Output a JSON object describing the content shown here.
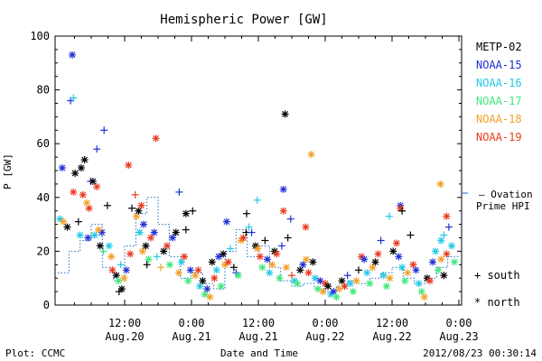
{
  "footer": {
    "plot_credit": "Plot: CCMC",
    "timestamp": "2012/08/23 00:30:14"
  },
  "chart_data": {
    "type": "scatter",
    "title": "Hemispheric Power [GW]",
    "xlabel": "Date and Time",
    "ylabel": "P [GW]",
    "ylim": [
      0,
      100
    ],
    "y_ticks": [
      0,
      20,
      40,
      60,
      80,
      100
    ],
    "x_ticks": [
      {
        "time": "12:00",
        "date": "Aug.20",
        "hours": 12
      },
      {
        "time": "0:00",
        "date": "Aug.21",
        "hours": 24
      },
      {
        "time": "12:00",
        "date": "Aug.21",
        "hours": 36
      },
      {
        "time": "0:00",
        "date": "Aug.22",
        "hours": 48
      },
      {
        "time": "12:00",
        "date": "Aug.22",
        "hours": 60
      },
      {
        "time": "0:00",
        "date": "Aug.23",
        "hours": 72
      }
    ],
    "xlim_hours": [
      0,
      72
    ],
    "x_units_note": "",
    "model_label_1": "— Ovation",
    "model_label_2": "Prime HPI",
    "model_color": "#1a6fc4",
    "symbol_legend": [
      {
        "symbol": "+",
        "label": "south"
      },
      {
        "symbol": "*",
        "label": "north"
      }
    ],
    "series": [
      {
        "name": "METP-02",
        "color": "#000000"
      },
      {
        "name": "NOAA-15",
        "color": "#1f2fd6"
      },
      {
        "name": "NOAA-16",
        "color": "#22c8e6"
      },
      {
        "name": "NOAA-17",
        "color": "#3ee87a"
      },
      {
        "name": "NOAA-18",
        "color": "#f2a028"
      },
      {
        "name": "NOAA-19",
        "color": "#e83a20"
      }
    ],
    "points": [
      {
        "s": 1,
        "m": "*",
        "x": 2.6,
        "y": 93
      },
      {
        "s": 1,
        "m": "+",
        "x": 2.3,
        "y": 76
      },
      {
        "s": 2,
        "m": "+",
        "x": 2.8,
        "y": 77
      },
      {
        "s": 1,
        "m": "+",
        "x": 8.3,
        "y": 65
      },
      {
        "s": 0,
        "m": "*",
        "x": 4.8,
        "y": 54
      },
      {
        "s": 0,
        "m": "*",
        "x": 4.2,
        "y": 51
      },
      {
        "s": 1,
        "m": "*",
        "x": 0.8,
        "y": 51
      },
      {
        "s": 0,
        "m": "*",
        "x": 3.1,
        "y": 49
      },
      {
        "s": 1,
        "m": "+",
        "x": 5.9,
        "y": 46
      },
      {
        "s": 1,
        "m": "+",
        "x": 7.0,
        "y": 58
      },
      {
        "s": 5,
        "m": "*",
        "x": 2.8,
        "y": 42
      },
      {
        "s": 5,
        "m": "*",
        "x": 4.5,
        "y": 41
      },
      {
        "s": 5,
        "m": "*",
        "x": 7.0,
        "y": 44
      },
      {
        "s": 0,
        "m": "*",
        "x": 6.3,
        "y": 46
      },
      {
        "s": 5,
        "m": "*",
        "x": 12.7,
        "y": 52
      },
      {
        "s": 5,
        "m": "*",
        "x": 17.6,
        "y": 62
      },
      {
        "s": 0,
        "m": "*",
        "x": 40.8,
        "y": 71
      },
      {
        "s": 4,
        "m": "*",
        "x": 45.5,
        "y": 56
      },
      {
        "s": 4,
        "m": "*",
        "x": 68.7,
        "y": 45
      },
      {
        "s": 1,
        "m": "*",
        "x": 40.5,
        "y": 43
      },
      {
        "s": 5,
        "m": "*",
        "x": 40.5,
        "y": 35
      },
      {
        "s": 2,
        "m": "+",
        "x": 35.8,
        "y": 39
      },
      {
        "s": 1,
        "m": "+",
        "x": 21.8,
        "y": 42
      },
      {
        "s": 1,
        "m": "*",
        "x": 30.3,
        "y": 31
      },
      {
        "s": 0,
        "m": "+",
        "x": 33.9,
        "y": 34
      },
      {
        "s": 0,
        "m": "*",
        "x": 23.0,
        "y": 34
      },
      {
        "s": 1,
        "m": "+",
        "x": 41.8,
        "y": 32
      },
      {
        "s": 5,
        "m": "*",
        "x": 44.5,
        "y": 29
      },
      {
        "s": 2,
        "m": "+",
        "x": 59.5,
        "y": 33
      },
      {
        "s": 1,
        "m": "*",
        "x": 61.5,
        "y": 37
      },
      {
        "s": 5,
        "m": "*",
        "x": 61.5,
        "y": 36
      },
      {
        "s": 0,
        "m": "+",
        "x": 61.8,
        "y": 35
      },
      {
        "s": 5,
        "m": "*",
        "x": 69.8,
        "y": 33
      },
      {
        "s": 2,
        "m": "+",
        "x": 69.3,
        "y": 26
      },
      {
        "s": 2,
        "m": "*",
        "x": 68.8,
        "y": 24
      },
      {
        "s": 2,
        "m": "*",
        "x": 0.4,
        "y": 32
      },
      {
        "s": 4,
        "m": "*",
        "x": 1.0,
        "y": 31
      },
      {
        "s": 0,
        "m": "*",
        "x": 1.7,
        "y": 29
      },
      {
        "s": 0,
        "m": "+",
        "x": 3.7,
        "y": 31
      },
      {
        "s": 2,
        "m": "*",
        "x": 4.0,
        "y": 26
      },
      {
        "s": 1,
        "m": "*",
        "x": 5.4,
        "y": 25
      },
      {
        "s": 5,
        "m": "*",
        "x": 5.6,
        "y": 36
      },
      {
        "s": 4,
        "m": "*",
        "x": 5.2,
        "y": 38
      },
      {
        "s": 2,
        "m": "*",
        "x": 6.6,
        "y": 26
      },
      {
        "s": 0,
        "m": "+",
        "x": 8.9,
        "y": 37
      },
      {
        "s": 0,
        "m": "*",
        "x": 7.6,
        "y": 22
      },
      {
        "s": 1,
        "m": "*",
        "x": 7.9,
        "y": 27
      },
      {
        "s": 4,
        "m": "*",
        "x": 7.3,
        "y": 28
      },
      {
        "s": 3,
        "m": "+",
        "x": 8.2,
        "y": 20
      },
      {
        "s": 2,
        "m": "*",
        "x": 9.2,
        "y": 22
      },
      {
        "s": 4,
        "m": "*",
        "x": 9.6,
        "y": 18
      },
      {
        "s": 0,
        "m": "*",
        "x": 10.5,
        "y": 11
      },
      {
        "s": 5,
        "m": "*",
        "x": 9.8,
        "y": 13
      },
      {
        "s": 3,
        "m": "*",
        "x": 10.9,
        "y": 9
      },
      {
        "s": 0,
        "m": "*",
        "x": 11.5,
        "y": 6
      },
      {
        "s": 0,
        "m": "+",
        "x": 11.0,
        "y": 5
      },
      {
        "s": 4,
        "m": "*",
        "x": 11.9,
        "y": 10
      },
      {
        "s": 2,
        "m": "+",
        "x": 11.3,
        "y": 15
      },
      {
        "s": 1,
        "m": "*",
        "x": 12.3,
        "y": 13
      },
      {
        "s": 5,
        "m": "*",
        "x": 13.0,
        "y": 19
      },
      {
        "s": 5,
        "m": "+",
        "x": 13.9,
        "y": 41
      },
      {
        "s": 0,
        "m": "+",
        "x": 13.3,
        "y": 36
      },
      {
        "s": 4,
        "m": "*",
        "x": 14.1,
        "y": 33
      },
      {
        "s": 0,
        "m": "*",
        "x": 14.5,
        "y": 35
      },
      {
        "s": 5,
        "m": "*",
        "x": 15.0,
        "y": 37
      },
      {
        "s": 2,
        "m": "*",
        "x": 14.7,
        "y": 27
      },
      {
        "s": 1,
        "m": "*",
        "x": 15.4,
        "y": 30
      },
      {
        "s": 0,
        "m": "*",
        "x": 15.8,
        "y": 22
      },
      {
        "s": 4,
        "m": "*",
        "x": 15.2,
        "y": 20
      },
      {
        "s": 3,
        "m": "*",
        "x": 16.3,
        "y": 17
      },
      {
        "s": 0,
        "m": "+",
        "x": 16.0,
        "y": 15
      },
      {
        "s": 5,
        "m": "*",
        "x": 16.7,
        "y": 25
      },
      {
        "s": 1,
        "m": "*",
        "x": 17.3,
        "y": 27
      },
      {
        "s": 2,
        "m": "+",
        "x": 17.8,
        "y": 18
      },
      {
        "s": 4,
        "m": "+",
        "x": 18.5,
        "y": 14
      },
      {
        "s": 0,
        "m": "*",
        "x": 19.0,
        "y": 20
      },
      {
        "s": 5,
        "m": "*",
        "x": 19.6,
        "y": 22
      },
      {
        "s": 3,
        "m": "*",
        "x": 20.1,
        "y": 15
      },
      {
        "s": 1,
        "m": "*",
        "x": 20.6,
        "y": 25
      },
      {
        "s": 0,
        "m": "*",
        "x": 21.2,
        "y": 27
      },
      {
        "s": 4,
        "m": "*",
        "x": 21.7,
        "y": 12
      },
      {
        "s": 2,
        "m": "*",
        "x": 22.2,
        "y": 16
      },
      {
        "s": 5,
        "m": "*",
        "x": 22.7,
        "y": 18
      },
      {
        "s": 0,
        "m": "+",
        "x": 23.0,
        "y": 28
      },
      {
        "s": 3,
        "m": "*",
        "x": 23.4,
        "y": 9
      },
      {
        "s": 1,
        "m": "*",
        "x": 23.8,
        "y": 13
      },
      {
        "s": 0,
        "m": "+",
        "x": 24.2,
        "y": 35
      },
      {
        "s": 4,
        "m": "*",
        "x": 24.7,
        "y": 11
      },
      {
        "s": 5,
        "m": "*",
        "x": 25.2,
        "y": 13
      },
      {
        "s": 2,
        "m": "*",
        "x": 25.5,
        "y": 7
      },
      {
        "s": 0,
        "m": "*",
        "x": 26.0,
        "y": 9
      },
      {
        "s": 3,
        "m": "*",
        "x": 26.4,
        "y": 4
      },
      {
        "s": 1,
        "m": "*",
        "x": 26.8,
        "y": 6
      },
      {
        "s": 4,
        "m": "*",
        "x": 27.3,
        "y": 3
      },
      {
        "s": 0,
        "m": "*",
        "x": 27.7,
        "y": 16
      },
      {
        "s": 5,
        "m": "*",
        "x": 28.1,
        "y": 10
      },
      {
        "s": 2,
        "m": "*",
        "x": 28.5,
        "y": 13
      },
      {
        "s": 1,
        "m": "*",
        "x": 28.9,
        "y": 18
      },
      {
        "s": 3,
        "m": "*",
        "x": 29.3,
        "y": 7
      },
      {
        "s": 0,
        "m": "*",
        "x": 29.7,
        "y": 19
      },
      {
        "s": 4,
        "m": "*",
        "x": 30.0,
        "y": 15
      },
      {
        "s": 5,
        "m": "*",
        "x": 30.6,
        "y": 16
      },
      {
        "s": 2,
        "m": "+",
        "x": 31.0,
        "y": 21
      },
      {
        "s": 0,
        "m": "+",
        "x": 31.6,
        "y": 14
      },
      {
        "s": 1,
        "m": "+",
        "x": 32.0,
        "y": 12
      },
      {
        "s": 3,
        "m": "*",
        "x": 32.4,
        "y": 11
      },
      {
        "s": 4,
        "m": "*",
        "x": 32.9,
        "y": 24
      },
      {
        "s": 5,
        "m": "*",
        "x": 33.3,
        "y": 25
      },
      {
        "s": 0,
        "m": "+",
        "x": 33.8,
        "y": 27
      },
      {
        "s": 2,
        "m": "+",
        "x": 34.3,
        "y": 29
      },
      {
        "s": 1,
        "m": "+",
        "x": 34.8,
        "y": 27
      },
      {
        "s": 0,
        "m": "*",
        "x": 35.5,
        "y": 22
      },
      {
        "s": 4,
        "m": "*",
        "x": 35.9,
        "y": 21
      },
      {
        "s": 5,
        "m": "*",
        "x": 36.3,
        "y": 18
      },
      {
        "s": 3,
        "m": "*",
        "x": 36.7,
        "y": 14
      },
      {
        "s": 0,
        "m": "+",
        "x": 37.2,
        "y": 24
      },
      {
        "s": 1,
        "m": "*",
        "x": 37.6,
        "y": 17
      },
      {
        "s": 2,
        "m": "*",
        "x": 38.0,
        "y": 12
      },
      {
        "s": 4,
        "m": "*",
        "x": 38.5,
        "y": 15
      },
      {
        "s": 0,
        "m": "*",
        "x": 38.9,
        "y": 20
      },
      {
        "s": 5,
        "m": "*",
        "x": 39.3,
        "y": 19
      },
      {
        "s": 3,
        "m": "*",
        "x": 39.8,
        "y": 10
      },
      {
        "s": 1,
        "m": "+",
        "x": 40.2,
        "y": 22
      },
      {
        "s": 0,
        "m": "+",
        "x": 41.3,
        "y": 25
      },
      {
        "s": 4,
        "m": "*",
        "x": 41.0,
        "y": 14
      },
      {
        "s": 5,
        "m": "+",
        "x": 42.0,
        "y": 11
      },
      {
        "s": 2,
        "m": "*",
        "x": 42.5,
        "y": 9
      },
      {
        "s": 3,
        "m": "*",
        "x": 43.0,
        "y": 8
      },
      {
        "s": 0,
        "m": "*",
        "x": 43.5,
        "y": 13
      },
      {
        "s": 1,
        "m": "*",
        "x": 44.0,
        "y": 15
      },
      {
        "s": 4,
        "m": "*",
        "x": 44.6,
        "y": 17
      },
      {
        "s": 5,
        "m": "*",
        "x": 45.0,
        "y": 12
      },
      {
        "s": 0,
        "m": "*",
        "x": 45.8,
        "y": 16
      },
      {
        "s": 2,
        "m": "*",
        "x": 46.2,
        "y": 10
      },
      {
        "s": 3,
        "m": "*",
        "x": 46.7,
        "y": 6
      },
      {
        "s": 1,
        "m": "*",
        "x": 47.1,
        "y": 9
      },
      {
        "s": 4,
        "m": "*",
        "x": 47.6,
        "y": 5
      },
      {
        "s": 5,
        "m": "*",
        "x": 48.0,
        "y": 8
      },
      {
        "s": 0,
        "m": "*",
        "x": 48.5,
        "y": 7
      },
      {
        "s": 2,
        "m": "*",
        "x": 49.0,
        "y": 4
      },
      {
        "s": 1,
        "m": "*",
        "x": 49.5,
        "y": 5
      },
      {
        "s": 3,
        "m": "*",
        "x": 50.0,
        "y": 3
      },
      {
        "s": 4,
        "m": "*",
        "x": 50.5,
        "y": 6
      },
      {
        "s": 0,
        "m": "*",
        "x": 51.0,
        "y": 9
      },
      {
        "s": 5,
        "m": "*",
        "x": 51.5,
        "y": 7
      },
      {
        "s": 1,
        "m": "+",
        "x": 52.0,
        "y": 11
      },
      {
        "s": 2,
        "m": "*",
        "x": 52.5,
        "y": 8
      },
      {
        "s": 3,
        "m": "*",
        "x": 53.0,
        "y": 5
      },
      {
        "s": 4,
        "m": "*",
        "x": 53.6,
        "y": 9
      },
      {
        "s": 0,
        "m": "+",
        "x": 54.0,
        "y": 13
      },
      {
        "s": 5,
        "m": "*",
        "x": 54.5,
        "y": 18
      },
      {
        "s": 1,
        "m": "*",
        "x": 55.0,
        "y": 17
      },
      {
        "s": 2,
        "m": "*",
        "x": 55.5,
        "y": 12
      },
      {
        "s": 3,
        "m": "*",
        "x": 56.0,
        "y": 8
      },
      {
        "s": 4,
        "m": "*",
        "x": 56.5,
        "y": 14
      },
      {
        "s": 0,
        "m": "*",
        "x": 57.0,
        "y": 16
      },
      {
        "s": 5,
        "m": "*",
        "x": 57.5,
        "y": 19
      },
      {
        "s": 1,
        "m": "+",
        "x": 58.0,
        "y": 24
      },
      {
        "s": 2,
        "m": "*",
        "x": 58.5,
        "y": 11
      },
      {
        "s": 3,
        "m": "*",
        "x": 59.0,
        "y": 7
      },
      {
        "s": 4,
        "m": "*",
        "x": 59.6,
        "y": 10
      },
      {
        "s": 0,
        "m": "*",
        "x": 60.2,
        "y": 20
      },
      {
        "s": 5,
        "m": "*",
        "x": 60.8,
        "y": 23
      },
      {
        "s": 1,
        "m": "*",
        "x": 61.2,
        "y": 18
      },
      {
        "s": 2,
        "m": "*",
        "x": 61.8,
        "y": 14
      },
      {
        "s": 3,
        "m": "*",
        "x": 62.3,
        "y": 9
      },
      {
        "s": 4,
        "m": "*",
        "x": 62.8,
        "y": 12
      },
      {
        "s": 0,
        "m": "+",
        "x": 63.3,
        "y": 26
      },
      {
        "s": 5,
        "m": "*",
        "x": 63.8,
        "y": 15
      },
      {
        "s": 1,
        "m": "*",
        "x": 64.3,
        "y": 13
      },
      {
        "s": 2,
        "m": "*",
        "x": 64.8,
        "y": 8
      },
      {
        "s": 3,
        "m": "*",
        "x": 65.3,
        "y": 5
      },
      {
        "s": 4,
        "m": "*",
        "x": 65.8,
        "y": 3
      },
      {
        "s": 0,
        "m": "*",
        "x": 66.3,
        "y": 10
      },
      {
        "s": 5,
        "m": "*",
        "x": 66.8,
        "y": 9
      },
      {
        "s": 1,
        "m": "*",
        "x": 67.3,
        "y": 16
      },
      {
        "s": 2,
        "m": "*",
        "x": 67.8,
        "y": 20
      },
      {
        "s": 3,
        "m": "*",
        "x": 68.3,
        "y": 13
      },
      {
        "s": 4,
        "m": "*",
        "x": 68.8,
        "y": 17
      },
      {
        "s": 0,
        "m": "*",
        "x": 69.3,
        "y": 11
      },
      {
        "s": 5,
        "m": "*",
        "x": 69.8,
        "y": 19
      },
      {
        "s": 1,
        "m": "+",
        "x": 70.2,
        "y": 29
      },
      {
        "s": 2,
        "m": "*",
        "x": 70.7,
        "y": 22
      },
      {
        "s": 3,
        "m": "*",
        "x": 71.2,
        "y": 16
      }
    ],
    "hpi_steps": [
      [
        0,
        12
      ],
      [
        2,
        20
      ],
      [
        4,
        24
      ],
      [
        6,
        30
      ],
      [
        8,
        14
      ],
      [
        10,
        9
      ],
      [
        12,
        22
      ],
      [
        14,
        34
      ],
      [
        16,
        40
      ],
      [
        18,
        30
      ],
      [
        20,
        18
      ],
      [
        22,
        10
      ],
      [
        24,
        12
      ],
      [
        26,
        8
      ],
      [
        28,
        6
      ],
      [
        30,
        20
      ],
      [
        32,
        28
      ],
      [
        34,
        18
      ],
      [
        36,
        22
      ],
      [
        38,
        14
      ],
      [
        40,
        9
      ],
      [
        42,
        7
      ],
      [
        44,
        8
      ],
      [
        46,
        6
      ],
      [
        48,
        5
      ],
      [
        50,
        7
      ],
      [
        52,
        9
      ],
      [
        54,
        8
      ],
      [
        56,
        10
      ],
      [
        58,
        12
      ],
      [
        60,
        14
      ],
      [
        62,
        10
      ],
      [
        64,
        8
      ],
      [
        66,
        10
      ],
      [
        68,
        14
      ],
      [
        70,
        18
      ],
      [
        72,
        18
      ]
    ]
  }
}
